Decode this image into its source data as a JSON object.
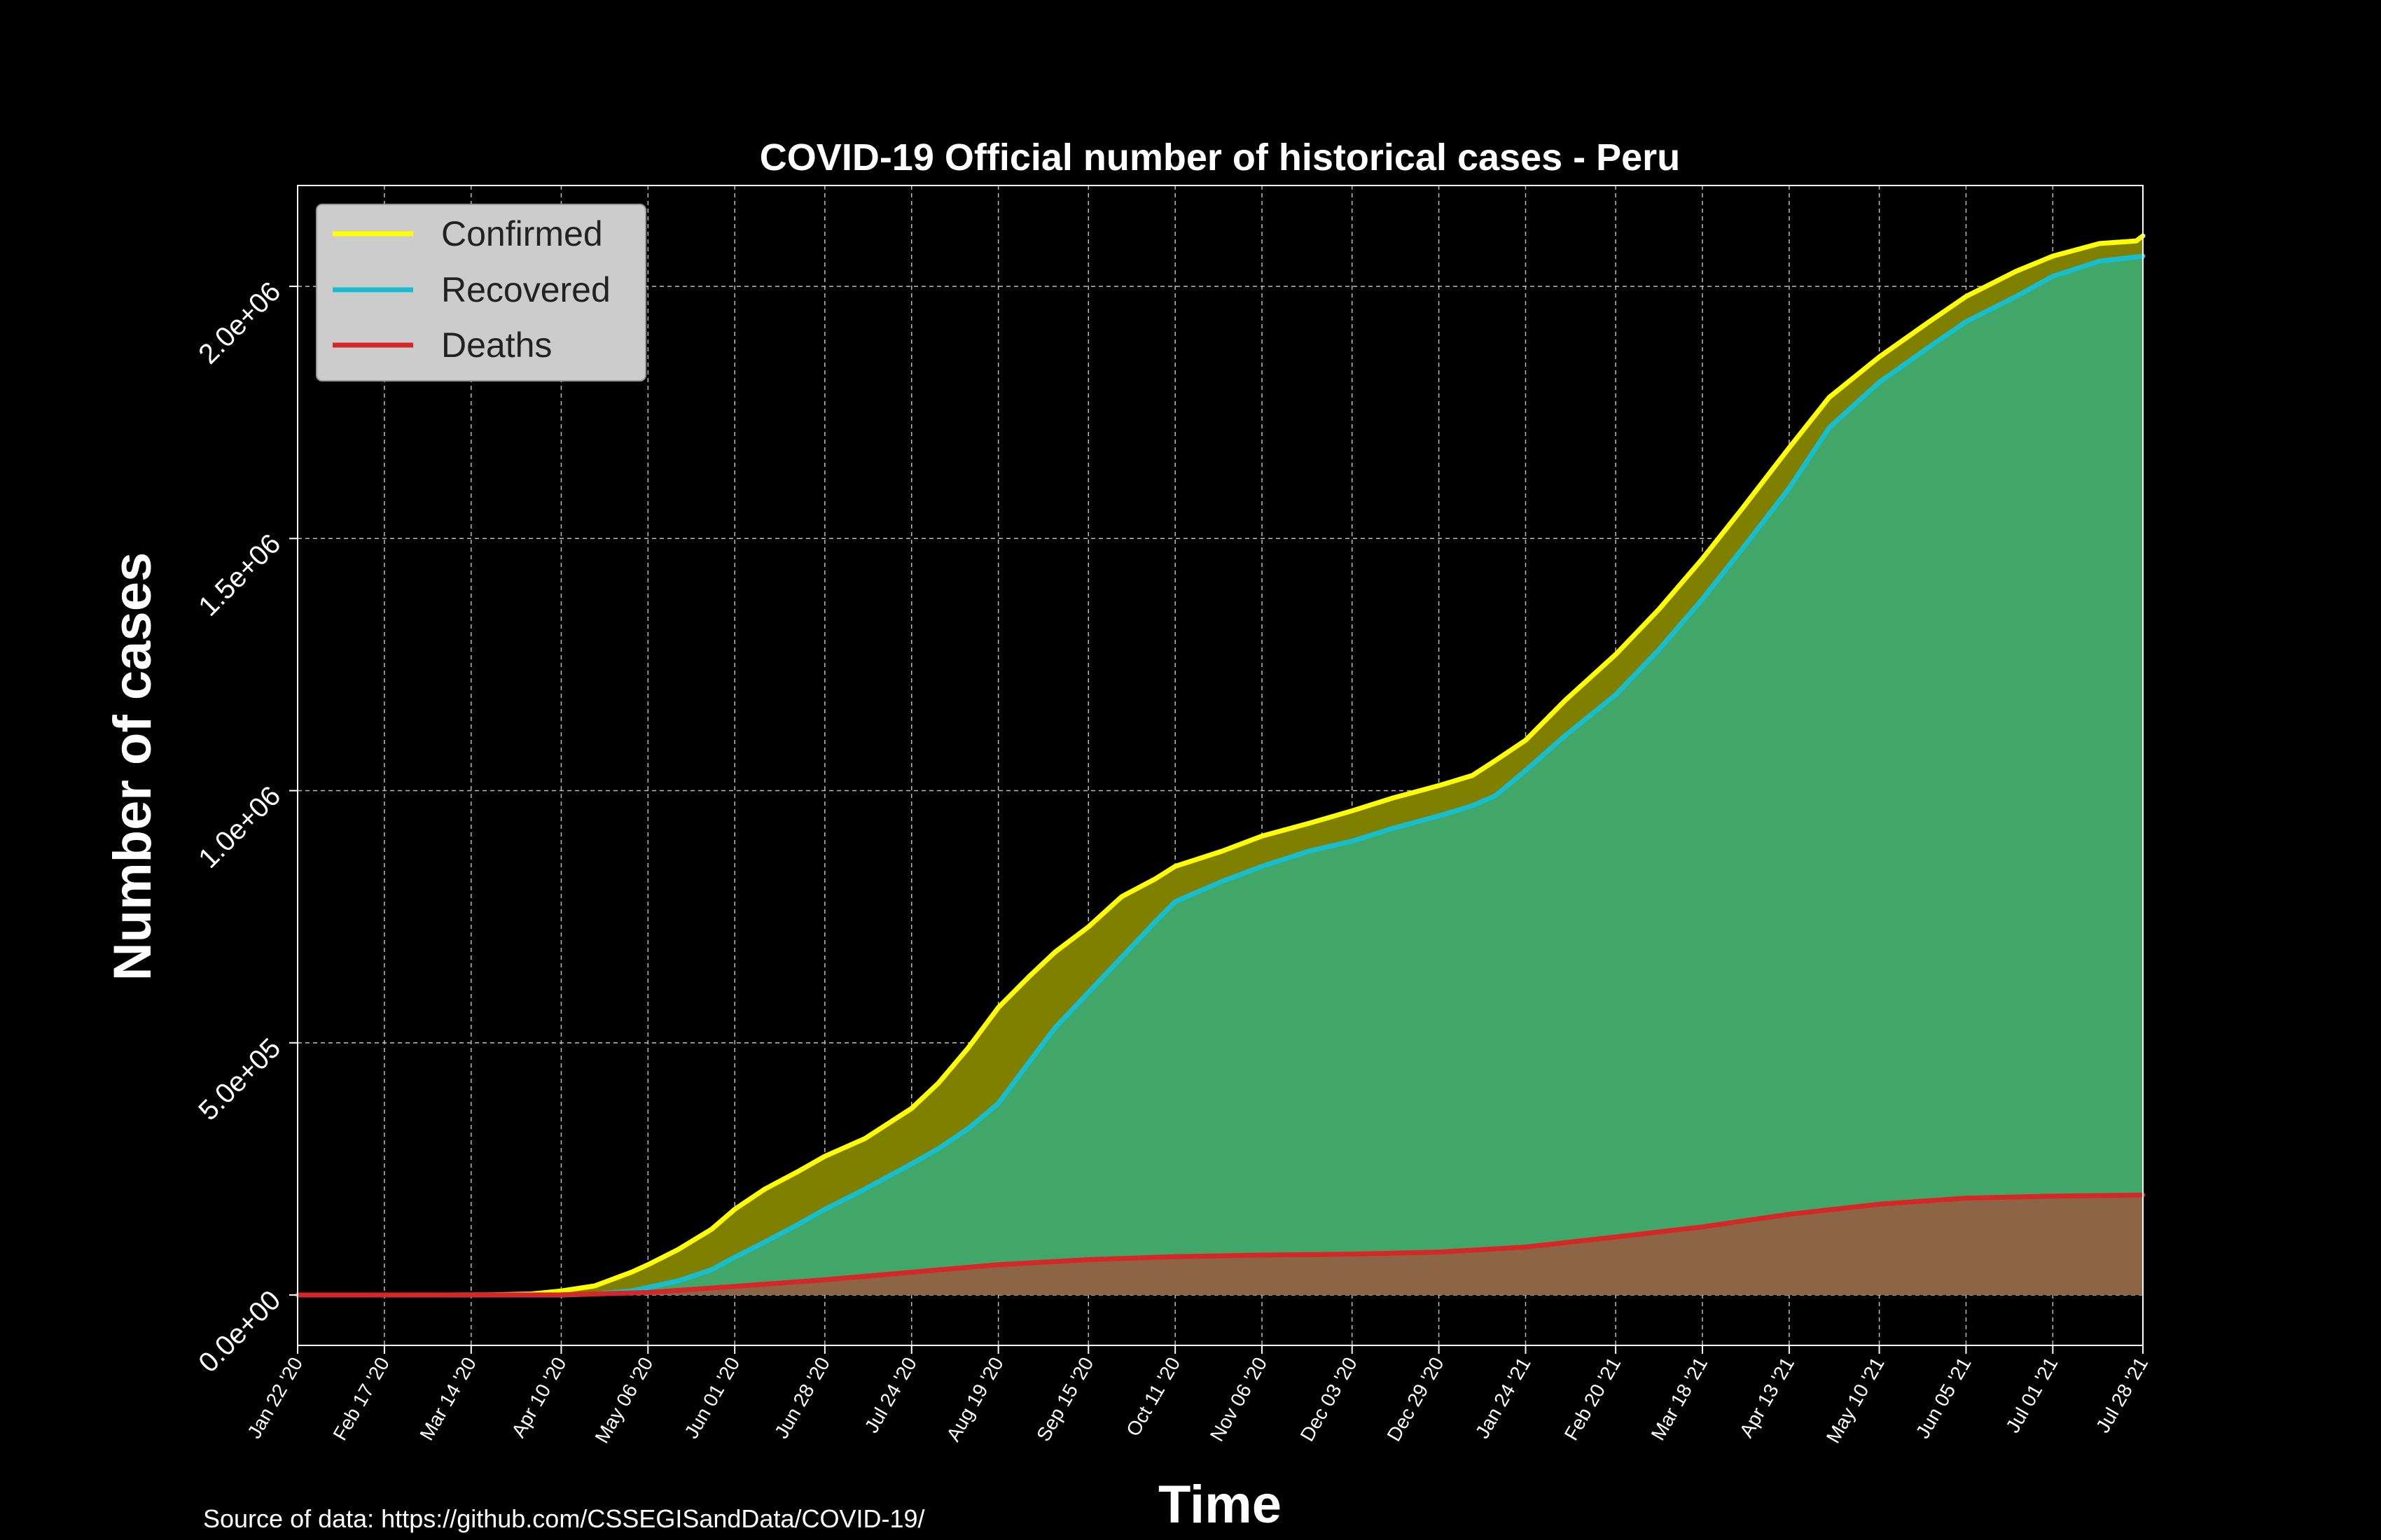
{
  "chart_data": {
    "type": "area",
    "title": "COVID-19 Official number of historical cases - Peru",
    "xlabel": "Time",
    "ylabel": "Number of cases",
    "source": "Source of data: https://github.com/CSSEGISandData/COVID-19/",
    "x_range": [
      "2020-01-22",
      "2021-07-28"
    ],
    "ylim": [
      -100000,
      2200000
    ],
    "y_ticks": [
      0,
      500000,
      1000000,
      1500000,
      2000000
    ],
    "y_tick_labels": [
      "0.0e+00",
      "5.0e+05",
      "1.0e+06",
      "1.5e+06",
      "2.0e+06"
    ],
    "x_ticks": [
      "2020-01-22",
      "2020-02-17",
      "2020-03-14",
      "2020-04-10",
      "2020-05-06",
      "2020-06-01",
      "2020-06-28",
      "2020-07-24",
      "2020-08-19",
      "2020-09-15",
      "2020-10-11",
      "2020-11-06",
      "2020-12-03",
      "2020-12-29",
      "2021-01-24",
      "2021-02-20",
      "2021-03-18",
      "2021-04-13",
      "2021-05-10",
      "2021-06-05",
      "2021-07-01",
      "2021-07-28"
    ],
    "x_tick_labels": [
      "Jan 22 '20",
      "Feb 17 '20",
      "Mar 14 '20",
      "Apr 10 '20",
      "May 06 '20",
      "Jun 01 '20",
      "Jun 28 '20",
      "Jul 24 '20",
      "Aug 19 '20",
      "Sep 15 '20",
      "Oct 11 '20",
      "Nov 06 '20",
      "Dec 03 '20",
      "Dec 29 '20",
      "Jan 24 '21",
      "Feb 20 '21",
      "Mar 18 '21",
      "Apr 13 '21",
      "May 10 '21",
      "Jun 05 '21",
      "Jul 01 '21",
      "Jul 28 '21"
    ],
    "grid": true,
    "legend_position": "top-left",
    "series": [
      {
        "name": "Confirmed",
        "line_color": "#ffff00",
        "fill_color": "#808000",
        "points": [
          [
            "2020-01-22",
            0
          ],
          [
            "2020-03-06",
            0
          ],
          [
            "2020-03-20",
            300
          ],
          [
            "2020-04-01",
            2000
          ],
          [
            "2020-04-10",
            8000
          ],
          [
            "2020-04-20",
            18000
          ],
          [
            "2020-05-01",
            45000
          ],
          [
            "2020-05-06",
            60000
          ],
          [
            "2020-05-15",
            90000
          ],
          [
            "2020-05-25",
            130000
          ],
          [
            "2020-06-01",
            170000
          ],
          [
            "2020-06-10",
            210000
          ],
          [
            "2020-06-20",
            245000
          ],
          [
            "2020-06-28",
            275000
          ],
          [
            "2020-07-10",
            310000
          ],
          [
            "2020-07-24",
            370000
          ],
          [
            "2020-08-01",
            420000
          ],
          [
            "2020-08-10",
            490000
          ],
          [
            "2020-08-19",
            570000
          ],
          [
            "2020-08-28",
            630000
          ],
          [
            "2020-09-05",
            680000
          ],
          [
            "2020-09-15",
            730000
          ],
          [
            "2020-09-25",
            790000
          ],
          [
            "2020-10-05",
            825000
          ],
          [
            "2020-10-11",
            850000
          ],
          [
            "2020-10-25",
            880000
          ],
          [
            "2020-11-06",
            910000
          ],
          [
            "2020-11-20",
            935000
          ],
          [
            "2020-12-03",
            960000
          ],
          [
            "2020-12-15",
            985000
          ],
          [
            "2020-12-29",
            1010000
          ],
          [
            "2021-01-08",
            1030000
          ],
          [
            "2021-01-15",
            1060000
          ],
          [
            "2021-01-24",
            1100000
          ],
          [
            "2021-02-05",
            1180000
          ],
          [
            "2021-02-20",
            1270000
          ],
          [
            "2021-03-05",
            1360000
          ],
          [
            "2021-03-18",
            1460000
          ],
          [
            "2021-03-30",
            1560000
          ],
          [
            "2021-04-13",
            1680000
          ],
          [
            "2021-04-25",
            1780000
          ],
          [
            "2021-05-10",
            1860000
          ],
          [
            "2021-05-25",
            1930000
          ],
          [
            "2021-06-05",
            1980000
          ],
          [
            "2021-06-20",
            2030000
          ],
          [
            "2021-07-01",
            2060000
          ],
          [
            "2021-07-15",
            2085000
          ],
          [
            "2021-07-26",
            2090000
          ],
          [
            "2021-07-28",
            2100000
          ]
        ]
      },
      {
        "name": "Recovered",
        "line_color": "#17becf",
        "fill_color": "#40a769",
        "points": [
          [
            "2020-01-22",
            0
          ],
          [
            "2020-04-10",
            0
          ],
          [
            "2020-04-20",
            2000
          ],
          [
            "2020-05-01",
            8000
          ],
          [
            "2020-05-06",
            15000
          ],
          [
            "2020-05-15",
            28000
          ],
          [
            "2020-05-25",
            50000
          ],
          [
            "2020-06-01",
            75000
          ],
          [
            "2020-06-10",
            105000
          ],
          [
            "2020-06-20",
            140000
          ],
          [
            "2020-06-28",
            170000
          ],
          [
            "2020-07-10",
            210000
          ],
          [
            "2020-07-24",
            260000
          ],
          [
            "2020-08-01",
            290000
          ],
          [
            "2020-08-10",
            330000
          ],
          [
            "2020-08-19",
            380000
          ],
          [
            "2020-08-28",
            460000
          ],
          [
            "2020-09-05",
            530000
          ],
          [
            "2020-09-15",
            600000
          ],
          [
            "2020-09-25",
            670000
          ],
          [
            "2020-10-05",
            740000
          ],
          [
            "2020-10-11",
            780000
          ],
          [
            "2020-10-25",
            820000
          ],
          [
            "2020-11-06",
            850000
          ],
          [
            "2020-11-20",
            880000
          ],
          [
            "2020-12-03",
            900000
          ],
          [
            "2020-12-15",
            925000
          ],
          [
            "2020-12-29",
            950000
          ],
          [
            "2021-01-08",
            970000
          ],
          [
            "2021-01-15",
            990000
          ],
          [
            "2021-01-24",
            1040000
          ],
          [
            "2021-02-05",
            1110000
          ],
          [
            "2021-02-20",
            1190000
          ],
          [
            "2021-03-05",
            1280000
          ],
          [
            "2021-03-18",
            1380000
          ],
          [
            "2021-03-30",
            1480000
          ],
          [
            "2021-04-13",
            1600000
          ],
          [
            "2021-04-25",
            1720000
          ],
          [
            "2021-05-10",
            1810000
          ],
          [
            "2021-05-25",
            1880000
          ],
          [
            "2021-06-05",
            1930000
          ],
          [
            "2021-06-20",
            1980000
          ],
          [
            "2021-07-01",
            2020000
          ],
          [
            "2021-07-15",
            2050000
          ],
          [
            "2021-07-28",
            2060000
          ]
        ]
      },
      {
        "name": "Deaths",
        "line_color": "#d62728",
        "fill_color": "#8c6446",
        "points": [
          [
            "2020-01-22",
            0
          ],
          [
            "2020-04-10",
            200
          ],
          [
            "2020-05-06",
            5000
          ],
          [
            "2020-06-01",
            17000
          ],
          [
            "2020-06-28",
            30000
          ],
          [
            "2020-07-24",
            45000
          ],
          [
            "2020-08-19",
            60000
          ],
          [
            "2020-09-15",
            70000
          ],
          [
            "2020-10-11",
            76000
          ],
          [
            "2020-11-06",
            79000
          ],
          [
            "2020-12-03",
            81000
          ],
          [
            "2020-12-29",
            85000
          ],
          [
            "2021-01-24",
            95000
          ],
          [
            "2021-02-20",
            115000
          ],
          [
            "2021-03-18",
            135000
          ],
          [
            "2021-04-13",
            160000
          ],
          [
            "2021-05-10",
            180000
          ],
          [
            "2021-06-05",
            192000
          ],
          [
            "2021-07-01",
            196000
          ],
          [
            "2021-07-28",
            198000
          ]
        ]
      }
    ]
  }
}
